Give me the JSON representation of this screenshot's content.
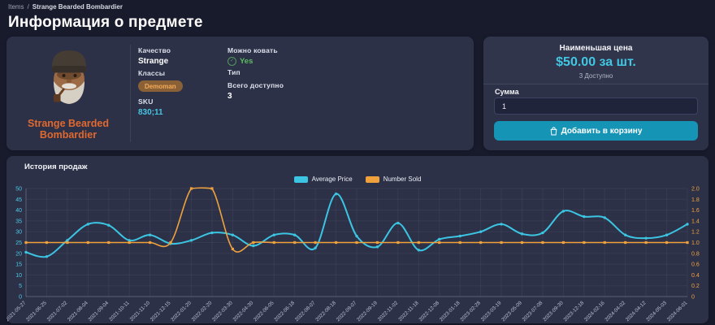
{
  "breadcrumb": {
    "root": "Items",
    "separator": "/",
    "current": "Strange Bearded Bombardier"
  },
  "page_title": "Информация о предмете",
  "item_card": {
    "name": "Strange Bearded Bombardier",
    "quality_label": "Качество",
    "quality_value": "Strange",
    "classes_label": "Классы",
    "class_badge": "Demoman",
    "sku_label": "SKU",
    "sku_value": "830;11",
    "craftable_label": "Можно ковать",
    "craftable_value": "Yes",
    "type_label": "Тип",
    "type_value": "",
    "available_label": "Всего доступно",
    "available_value": "3"
  },
  "buy_card": {
    "lowest_price_label": "Наименьшая цена",
    "price": "$50.00 за шт.",
    "available": "3 Доступно",
    "amount_label": "Сумма",
    "amount_value": "1",
    "add_to_cart_label": "Добавить в корзину"
  },
  "colors": {
    "page_bg": "#181b2c",
    "card_bg": "#2d3148",
    "accent_cyan": "#41c7e4",
    "accent_orange": "#efa23c",
    "item_name_orange": "#e0692f",
    "button_teal": "#1694b6",
    "craftable_green": "#5dbb63"
  },
  "chart_data": {
    "type": "line",
    "title": "История продаж",
    "legend_position": "top-center",
    "grid": true,
    "categories": [
      "2021-05-27",
      "2021-06-25",
      "2021-07-02",
      "2021-08-04",
      "2021-09-04",
      "2021-10-11",
      "2021-11-10",
      "2021-12-15",
      "2022-01-20",
      "2022-02-20",
      "2022-03-30",
      "2022-04-30",
      "2022-06-05",
      "2022-06-18",
      "2022-08-07",
      "2022-08-18",
      "2022-09-07",
      "2022-09-19",
      "2022-11-02",
      "2022-11-18",
      "2022-12-08",
      "2023-01-18",
      "2023-02-28",
      "2023-03-19",
      "2023-05-09",
      "2023-07-08",
      "2023-09-30",
      "2023-12-18",
      "2024-02-16",
      "2024-04-02",
      "2024-04-12",
      "2024-05-03",
      "2024-06-01"
    ],
    "left_axis": {
      "label": "Average Price",
      "min": 0,
      "max": 50,
      "step": 5,
      "color": "#4cc9e8"
    },
    "right_axis": {
      "label": "Number Sold",
      "min": 0,
      "max": 2,
      "step": 0.2,
      "color": "#f2a33c"
    },
    "series": [
      {
        "name": "Average Price",
        "axis": "left",
        "color": "#3bc5e2",
        "marker": "circle",
        "values": [
          20.5,
          18.5,
          26,
          33.5,
          33,
          26,
          28.5,
          24.5,
          26,
          29.5,
          28.5,
          23.5,
          28.5,
          28.5,
          22.5,
          47.5,
          28,
          23,
          34,
          21.5,
          26.5,
          28,
          30,
          33.5,
          29,
          29.5,
          39.5,
          37,
          36.5,
          28.5,
          27,
          28.5,
          33.5
        ]
      },
      {
        "name": "Number Sold",
        "axis": "right",
        "color": "#efa23c",
        "marker": "square",
        "values": [
          1,
          1,
          1,
          1,
          1,
          1,
          1,
          1,
          2,
          2,
          0.88,
          1,
          1,
          1,
          1,
          1,
          1,
          1,
          1,
          1,
          1,
          1,
          1,
          1,
          1,
          1,
          1,
          1,
          1,
          1,
          1,
          1,
          1
        ]
      }
    ]
  }
}
